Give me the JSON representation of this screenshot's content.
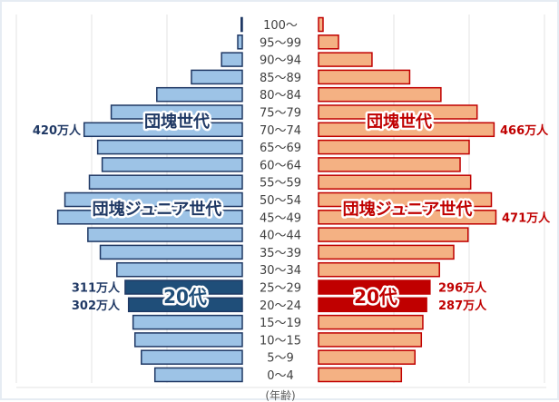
{
  "chart_data": {
    "type": "bar",
    "orientation": "horizontal-pyramid",
    "categories": [
      "100～",
      "95～99",
      "90～94",
      "85～89",
      "80～84",
      "75～79",
      "70～74",
      "65～69",
      "60～64",
      "55～59",
      "50～54",
      "45～49",
      "40～44",
      "35～39",
      "30～34",
      "25～29",
      "20～24",
      "15～19",
      "10～15",
      "5～9",
      "0～4"
    ],
    "xlabel": "(年齢)",
    "xlim": [
      0,
      600
    ],
    "grid": true,
    "series": [
      {
        "side": "left",
        "color": "#9dc3e6",
        "highlight_color": "#1f4e79",
        "edge_color": "#1f3864",
        "values": [
          3,
          12,
          55,
          135,
          227,
          348,
          420,
          384,
          372,
          406,
          471,
          490,
          410,
          377,
          333,
          311,
          302,
          290,
          285,
          268,
          232
        ]
      },
      {
        "side": "right",
        "color": "#f4b183",
        "highlight_color": "#c00000",
        "edge_color": "#c00000",
        "values": [
          12,
          53,
          142,
          242,
          325,
          421,
          466,
          400,
          376,
          404,
          459,
          471,
          397,
          359,
          321,
          296,
          287,
          277,
          273,
          256,
          220
        ]
      }
    ],
    "highlight_categories": [
      "25～29",
      "20～24"
    ],
    "annotations": {
      "left_baby_boom_value": "420万人",
      "right_baby_boom_value": "466万人",
      "right_junior_value": "471万人",
      "left_25_value": "311万人",
      "left_20_value": "302万人",
      "right_25_value": "296万人",
      "right_20_value": "287万人",
      "baby_boom_label": "団塊世代",
      "junior_label": "団塊ジュニア世代",
      "twenties_label": "20代"
    }
  }
}
